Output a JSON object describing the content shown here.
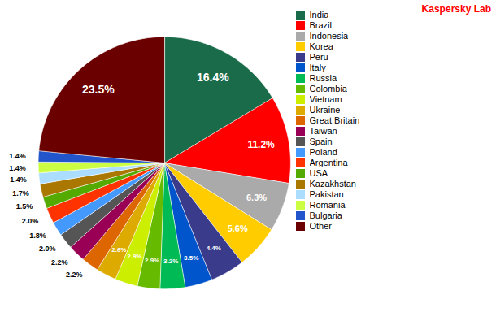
{
  "chart_data": {
    "type": "pie",
    "categories": [
      "India",
      "Brazil",
      "Indonesia",
      "Korea",
      "Peru",
      "Italy",
      "Russia",
      "Colombia",
      "Vietnam",
      "Ukraine",
      "Great Britain",
      "Taiwan",
      "Spain",
      "Poland",
      "Argentina",
      "USA",
      "Kazakhstan",
      "Pakistan",
      "Romania",
      "Bulgaria",
      "Other"
    ],
    "values": [
      16.4,
      11.2,
      6.3,
      5.6,
      4.4,
      3.5,
      3.2,
      2.9,
      2.9,
      2.6,
      2.2,
      2.2,
      2.0,
      1.8,
      2.0,
      1.5,
      1.7,
      1.4,
      1.4,
      1.4,
      23.5
    ],
    "value_labels": [
      "16.4%",
      "11.2%",
      "6.3%",
      "5.6%",
      "4.4%",
      "3.5%",
      "3.2%",
      "2.9%",
      "2.9%",
      "2.6%",
      "2.2%",
      "2.2%",
      "2.0%",
      "1.8%",
      "2.0%",
      "1.5%",
      "1.7%",
      "1.4%",
      "1.4%",
      "1.4%",
      "23.5%"
    ],
    "colors": [
      "#1a6b4a",
      "#ff0000",
      "#aaaaaa",
      "#ffcc00",
      "#3b3b8c",
      "#0055cc",
      "#00bb55",
      "#66bb00",
      "#ccee00",
      "#ddaa00",
      "#dd6600",
      "#990055",
      "#555555",
      "#4499ff",
      "#ff3300",
      "#55aa00",
      "#aa7700",
      "#aaddff",
      "#ccff44",
      "#2255cc",
      "#6b0000"
    ],
    "data_labels": true,
    "legend": "right",
    "annotations": [
      {
        "text": "Kaspersky Lab",
        "color": "#ff0000"
      }
    ]
  }
}
